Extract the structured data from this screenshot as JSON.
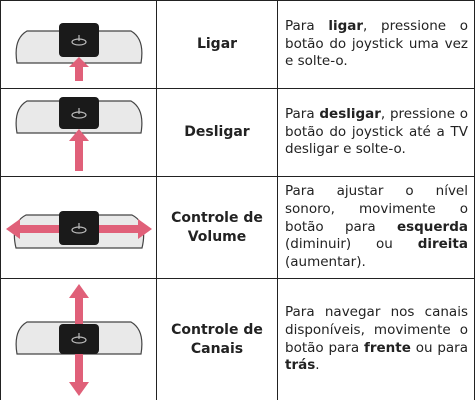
{
  "table": {
    "rows": [
      {
        "label": "Ligar",
        "description": [
          {
            "text": "Para "
          },
          {
            "text": "ligar",
            "bold": true
          },
          {
            "text": ", pressione o botão do joystick uma vez e solte-o."
          }
        ]
      },
      {
        "label": "Desligar",
        "description": [
          {
            "text": "Para "
          },
          {
            "text": "desligar",
            "bold": true
          },
          {
            "text": ", pressione o botão do joystick até a TV desligar e solte-o."
          }
        ]
      },
      {
        "label": "Controle de Volume",
        "description": [
          {
            "text": "Para ajustar o nível sonoro, movimente o botão para "
          },
          {
            "text": "esquerda",
            "bold": true
          },
          {
            "text": " (diminuir) ou "
          },
          {
            "text": "direita",
            "bold": true
          },
          {
            "text": " (aumentar)."
          }
        ]
      },
      {
        "label": "Controle de Canais",
        "description": [
          {
            "text": "Para navegar nos canais disponíveis, movimente o botão para "
          },
          {
            "text": "frente",
            "bold": true
          },
          {
            "text": " ou para "
          },
          {
            "text": "trás",
            "bold": true
          },
          {
            "text": "."
          }
        ]
      }
    ]
  }
}
